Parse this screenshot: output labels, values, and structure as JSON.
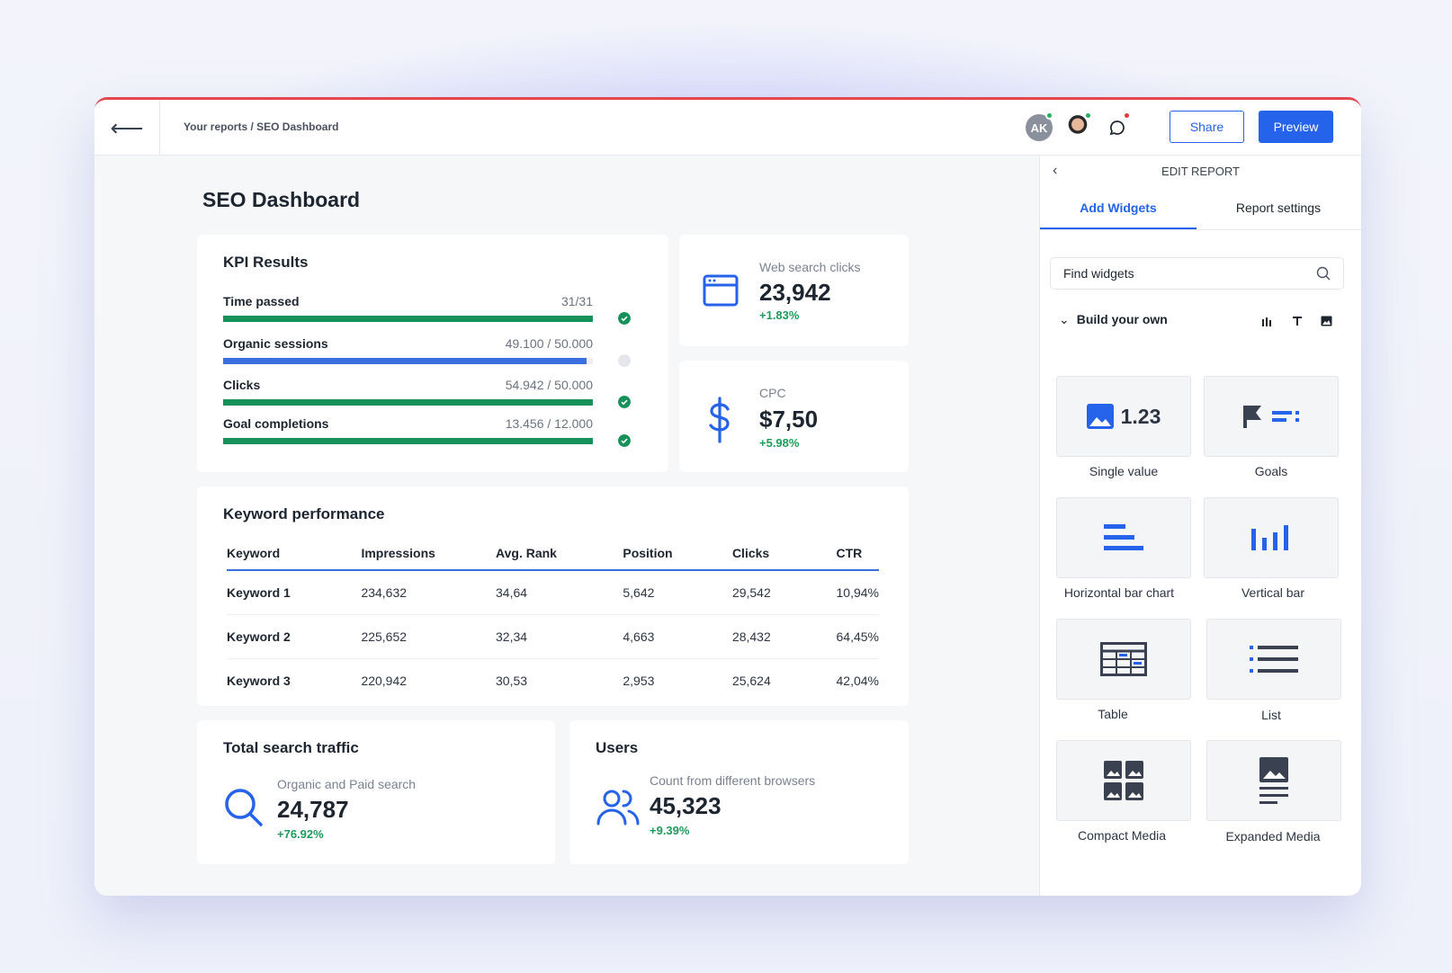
{
  "topbar": {
    "back_icon": "arrow-left-icon",
    "breadcrumb": "Your reports / SEO Dashboard",
    "avatar_initials": "AK",
    "share_label": "Share",
    "preview_label": "Preview",
    "colors": {
      "accent": "#2563eb",
      "top_border": "#e5464f",
      "online": "#22b45a",
      "alert": "#e53935"
    }
  },
  "dashboard": {
    "title": "SEO Dashboard",
    "kpi": {
      "title": "KPI Results",
      "rows": [
        {
          "label": "Time passed",
          "value": "31/31",
          "progress": 1.0,
          "color": "#16915a",
          "status": "complete"
        },
        {
          "label": "Organic sessions",
          "value": "49.100 / 50.000",
          "progress": 0.982,
          "color": "#3b6fe0",
          "status": "pending"
        },
        {
          "label": "Clicks",
          "value": "54.942 / 50.000",
          "progress": 1.0,
          "color": "#16915a",
          "status": "complete"
        },
        {
          "label": "Goal completions",
          "value": "13.456 / 12.000",
          "progress": 1.0,
          "color": "#16915a",
          "status": "complete"
        }
      ]
    },
    "web_clicks": {
      "label": "Web search clicks",
      "value": "23,942",
      "delta": "+1.83%"
    },
    "cpc": {
      "label": "CPC",
      "value": "$7,50",
      "delta": "+5.98%"
    },
    "keywords": {
      "title": "Keyword performance",
      "headers": [
        "Keyword",
        "Impressions",
        "Avg. Rank",
        "Position",
        "Clicks",
        "CTR"
      ],
      "rows": [
        [
          "Keyword 1",
          "234,632",
          "34,64",
          "5,642",
          "29,542",
          "10,94%"
        ],
        [
          "Keyword 2",
          "225,652",
          "32,34",
          "4,663",
          "28,432",
          "64,45%"
        ],
        [
          "Keyword 3",
          "220,942",
          "30,53",
          "2,953",
          "25,624",
          "42,04%"
        ]
      ]
    },
    "traffic": {
      "title": "Total search traffic",
      "label": "Organic and Paid search",
      "value": "24,787",
      "delta": "+76.92%"
    },
    "users": {
      "title": "Users",
      "label": "Count from different browsers",
      "value": "45,323",
      "delta": "+9.39%"
    }
  },
  "sidebar": {
    "heading": "EDIT REPORT",
    "tabs": [
      {
        "label": "Add Widgets",
        "active": true
      },
      {
        "label": "Report settings",
        "active": false
      }
    ],
    "search_placeholder": "Find widgets",
    "build_label": "Build your own",
    "tools": [
      "bar-chart-icon",
      "text-icon",
      "image-icon"
    ],
    "widgets": [
      {
        "label": "Single value",
        "icon": "single-value-icon",
        "sample": "1.23"
      },
      {
        "label": "Goals",
        "icon": "goals-icon"
      },
      {
        "label": "Horizontal bar chart",
        "icon": "horizontal-bar-icon"
      },
      {
        "label": "Vertical bar",
        "icon": "vertical-bar-icon"
      },
      {
        "label": "Table",
        "icon": "table-icon"
      },
      {
        "label": "List",
        "icon": "list-icon"
      },
      {
        "label": "Compact Media",
        "icon": "compact-media-icon"
      },
      {
        "label": "Expanded Media",
        "icon": "expanded-media-icon"
      }
    ]
  }
}
